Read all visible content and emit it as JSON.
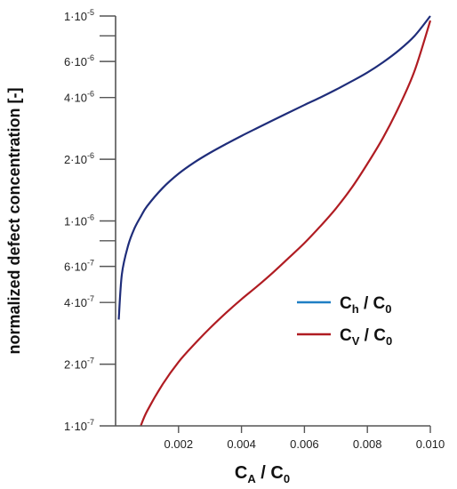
{
  "chart_data": {
    "type": "line",
    "title": "",
    "xlabel": {
      "base": "C",
      "sub": "A",
      "sep": " / ",
      "base2": "C",
      "sub2": "0"
    },
    "ylabel": "normalized defect concentration [-]",
    "xscale": "linear",
    "yscale": "log",
    "xlim": [
      0,
      0.01
    ],
    "ylim": [
      1e-07,
      1e-05
    ],
    "grid": false,
    "legend_position": "right-middle",
    "xticks": [
      {
        "value": 0.002,
        "label": "0.002"
      },
      {
        "value": 0.004,
        "label": "0.004"
      },
      {
        "value": 0.006,
        "label": "0.006"
      },
      {
        "value": 0.008,
        "label": "0.008"
      },
      {
        "value": 0.01,
        "label": "0.010"
      }
    ],
    "yticks": [
      {
        "value": 1e-07,
        "mant": "1",
        "exp": "-7"
      },
      {
        "value": 2e-07,
        "mant": "2",
        "exp": "-7"
      },
      {
        "value": 4e-07,
        "mant": "4",
        "exp": "-7"
      },
      {
        "value": 6e-07,
        "mant": "6",
        "exp": "-7"
      },
      {
        "value": 1e-06,
        "mant": "1",
        "exp": "-6"
      },
      {
        "value": 2e-06,
        "mant": "2",
        "exp": "-6"
      },
      {
        "value": 4e-06,
        "mant": "4",
        "exp": "-6"
      },
      {
        "value": 6e-06,
        "mant": "6",
        "exp": "-6"
      },
      {
        "value": 1e-05,
        "mant": "1",
        "exp": "-5"
      }
    ],
    "minor_yticks": [
      8e-07,
      8e-06
    ],
    "series": [
      {
        "name": {
          "base": "C",
          "sub": "h",
          "sep": " / ",
          "base2": "C",
          "sub2": "0"
        },
        "color": "#1f2d7a",
        "legend_color": "#1f7fc4",
        "x": [
          0.0001,
          0.0002,
          0.0004,
          0.0006,
          0.0008,
          0.001,
          0.0015,
          0.002,
          0.0025,
          0.003,
          0.0035,
          0.004,
          0.0045,
          0.005,
          0.0055,
          0.006,
          0.0065,
          0.007,
          0.0075,
          0.008,
          0.0085,
          0.009,
          0.0095,
          0.01
        ],
        "y": [
          3.3e-07,
          5.5e-07,
          7.6e-07,
          9.2e-07,
          1.05e-06,
          1.18e-06,
          1.45e-06,
          1.7e-06,
          1.93e-06,
          2.15e-06,
          2.37e-06,
          2.6e-06,
          2.84e-06,
          3.1e-06,
          3.38e-06,
          3.68e-06,
          4e-06,
          4.37e-06,
          4.8e-06,
          5.3e-06,
          5.95e-06,
          6.8e-06,
          8e-06,
          1e-05
        ]
      },
      {
        "name": {
          "base": "C",
          "sub": "V",
          "sep": " / ",
          "base2": "C",
          "sub2": "0"
        },
        "color": "#b01c22",
        "legend_color": "#b01c22",
        "x": [
          0.0008,
          0.001,
          0.0015,
          0.002,
          0.0025,
          0.003,
          0.0035,
          0.004,
          0.0045,
          0.005,
          0.0055,
          0.006,
          0.0065,
          0.007,
          0.0075,
          0.008,
          0.0085,
          0.009,
          0.0095,
          0.01
        ],
        "y": [
          1e-07,
          1.18e-07,
          1.6e-07,
          2.05e-07,
          2.5e-07,
          3e-07,
          3.55e-07,
          4.15e-07,
          4.8e-07,
          5.6e-07,
          6.6e-07,
          7.8e-07,
          9.4e-07,
          1.15e-06,
          1.45e-06,
          1.9e-06,
          2.55e-06,
          3.6e-06,
          5.4e-06,
          9.5e-06
        ]
      }
    ]
  }
}
